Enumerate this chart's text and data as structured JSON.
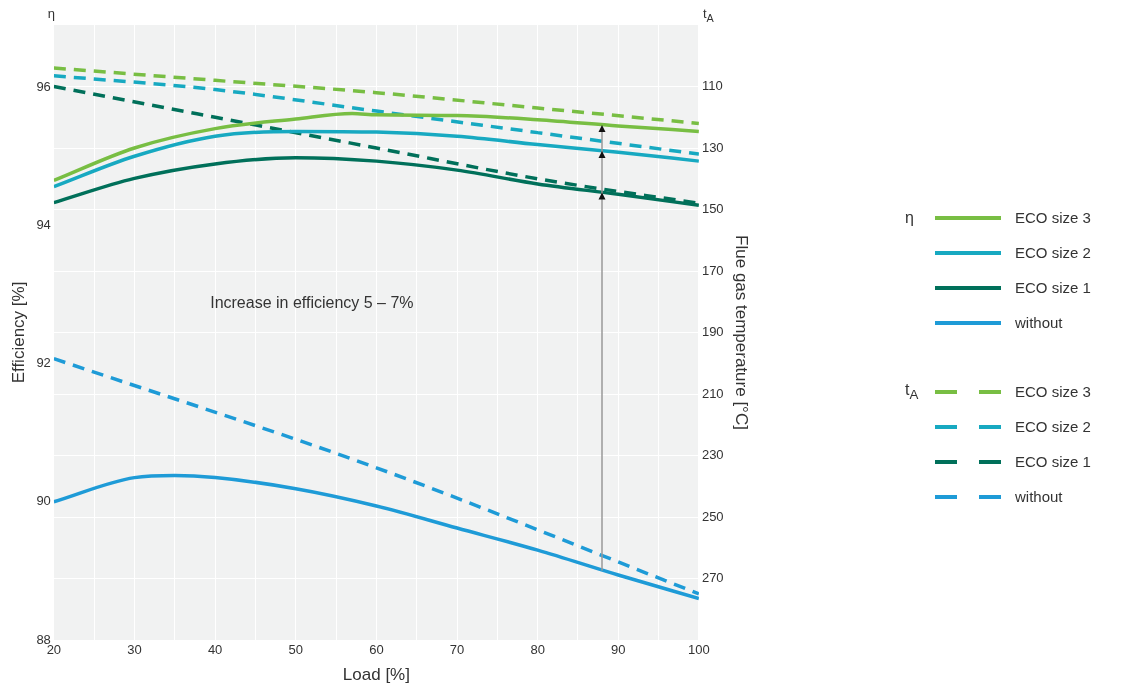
{
  "chart_data": {
    "type": "line",
    "xlabel": "Load [%]",
    "ylabel": "Efficiency [%]",
    "y2label": "Flue gas temperature [°C]",
    "xlim": [
      20,
      100
    ],
    "xticks": [
      20,
      {
        "value": 25,
        "label": null
      },
      30,
      {
        "value": 35,
        "label": null
      },
      40,
      {
        "value": 45,
        "label": null
      },
      50,
      {
        "value": 55,
        "label": null
      },
      60,
      {
        "value": 65,
        "label": null
      },
      70,
      {
        "value": 75,
        "label": null
      },
      80,
      {
        "value": 85,
        "label": null
      },
      90,
      {
        "value": 95,
        "label": null
      },
      100
    ],
    "ylim": [
      88,
      96.9
    ],
    "yticks": [
      88,
      90,
      92,
      94,
      96
    ],
    "y2lim": [
      290,
      90
    ],
    "y2ticks": [
      110,
      130,
      150,
      170,
      190,
      210,
      230,
      250,
      270
    ],
    "grid": true,
    "legend": "right",
    "marker": "none",
    "annotations": [
      "Increase in efficiency 5 – 7%",
      "η",
      "t$_{A}$"
    ],
    "series": [
      {
        "name": "ECO size 3",
        "color": "#78be43",
        "line_style": "solid",
        "x": [
          20,
          30,
          40,
          50,
          57,
          60,
          70,
          80,
          90,
          100
        ],
        "values": [
          94.65,
          95.12,
          95.4,
          95.54,
          95.62,
          95.6,
          95.59,
          95.53,
          95.44,
          95.36
        ]
      },
      {
        "name": "ECO size 2",
        "color": "#17a9c1",
        "line_style": "solid",
        "x": [
          20,
          30,
          40,
          50,
          60,
          70,
          80,
          90,
          100
        ],
        "values": [
          94.56,
          95.0,
          95.29,
          95.36,
          95.35,
          95.29,
          95.17,
          95.06,
          94.93
        ]
      },
      {
        "name": "ECO size 1",
        "color": "#00705a",
        "line_style": "solid",
        "x": [
          20,
          30,
          40,
          50,
          60,
          70,
          80,
          90,
          100
        ],
        "values": [
          94.33,
          94.68,
          94.89,
          94.98,
          94.93,
          94.8,
          94.6,
          94.45,
          94.29
        ]
      },
      {
        "name": "without",
        "color": "#1e9bd7",
        "line_style": "solid",
        "x": [
          20,
          30,
          35,
          40,
          50,
          60,
          70,
          80,
          90,
          100
        ],
        "values": [
          90.0,
          90.35,
          90.38,
          90.35,
          90.19,
          89.94,
          89.62,
          89.3,
          88.94,
          88.6
        ]
      },
      {
        "name": "ECO size 3",
        "color": "#78be43",
        "line_style": "dashed",
        "axis": "y2",
        "x": [
          20,
          40,
          60,
          80,
          100
        ],
        "values": [
          104,
          108,
          112,
          117,
          122
        ]
      },
      {
        "name": "ECO size 2",
        "color": "#17a9c1",
        "line_style": "dashed",
        "axis": "y2",
        "x": [
          20,
          40,
          60,
          80,
          100
        ],
        "values": [
          106.5,
          111,
          118,
          125,
          132
        ]
      },
      {
        "name": "ECO size 1",
        "color": "#00705a",
        "line_style": "dashed",
        "axis": "y2",
        "x": [
          20,
          40,
          60,
          80,
          100
        ],
        "values": [
          110,
          120,
          130,
          140,
          148
        ]
      },
      {
        "name": "without",
        "color": "#1e9bd7",
        "line_style": "dashed",
        "axis": "y2",
        "x": [
          20,
          60,
          100
        ],
        "values": [
          198.5,
          234,
          275
        ]
      }
    ]
  }
}
